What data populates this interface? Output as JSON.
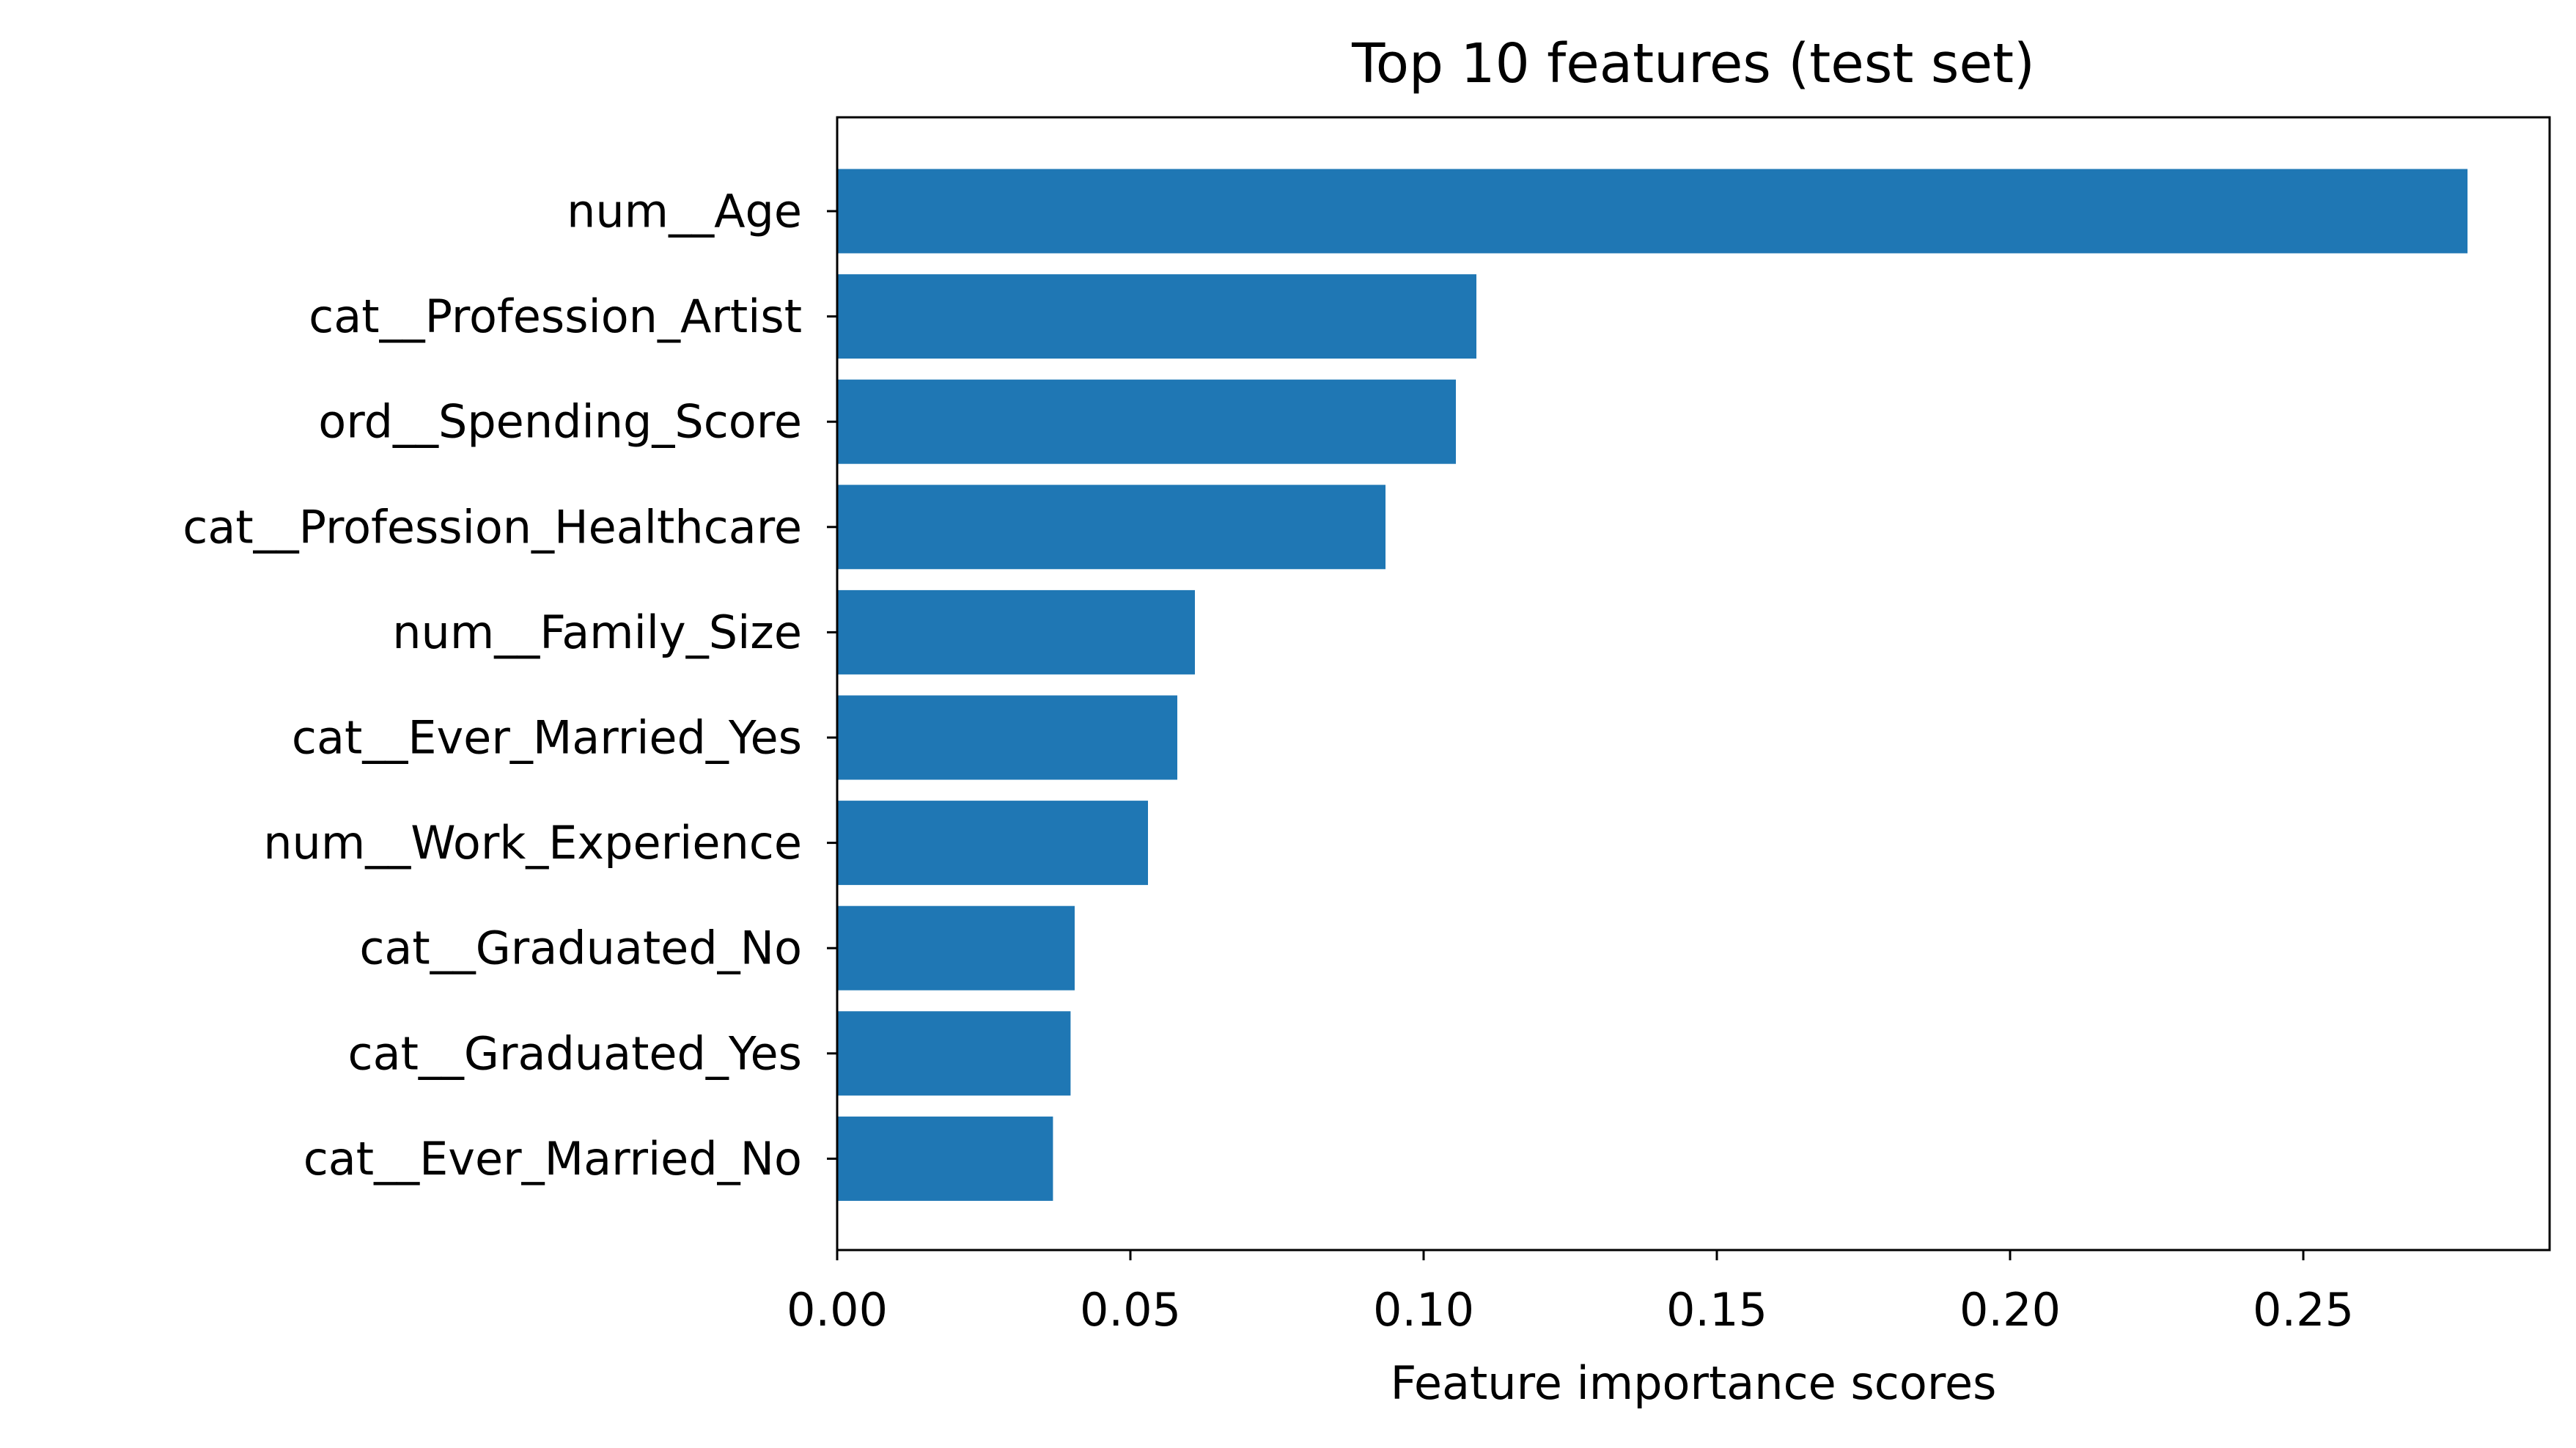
{
  "chart_data": {
    "type": "bar",
    "orientation": "horizontal",
    "title": "Top 10 features (test set)",
    "xlabel": "Feature importance scores",
    "ylabel": "",
    "categories": [
      "num__Age",
      "cat__Profession_Artist",
      "ord__Spending_Score",
      "cat__Profession_Healthcare",
      "num__Family_Size",
      "cat__Ever_Married_Yes",
      "num__Work_Experience",
      "cat__Graduated_No",
      "cat__Graduated_Yes",
      "cat__Ever_Married_No"
    ],
    "values": [
      0.278,
      0.109,
      0.1055,
      0.0935,
      0.061,
      0.058,
      0.053,
      0.0405,
      0.0398,
      0.0368
    ],
    "xlim": [
      0,
      0.292
    ],
    "xticks": [
      0.0,
      0.05,
      0.1,
      0.15,
      0.2,
      0.25
    ],
    "xtick_labels": [
      "0.00",
      "0.05",
      "0.10",
      "0.15",
      "0.20",
      "0.25"
    ],
    "grid": false,
    "legend": "none",
    "bar_color": "#1f77b4"
  }
}
